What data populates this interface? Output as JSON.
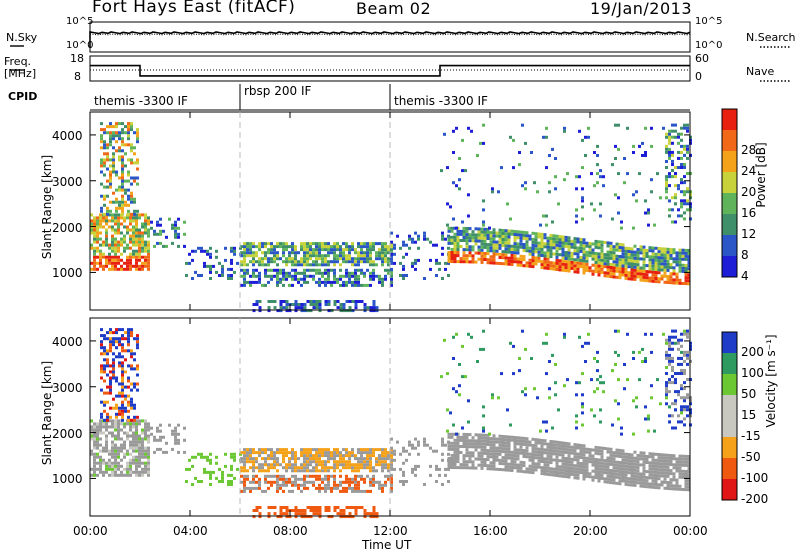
{
  "header": {
    "title": "Fort Hays East (fitACF)",
    "beam": "Beam 02",
    "date": "19/Jan/2013"
  },
  "panel_labels": {
    "nsky": "N.Sky",
    "nsearch": "N.Search",
    "freq": "Freq.",
    "mhz": "[MHz]",
    "nave": "Nave",
    "cpid": "CPID"
  },
  "colors": {
    "power": [
      "#1e1ed6",
      "#2a56c8",
      "#3f8f6a",
      "#5fb35a",
      "#c8d23a",
      "#f3a21a",
      "#f06818",
      "#e82010"
    ],
    "velocity": [
      "#e01515",
      "#f05a10",
      "#f5a21a",
      "#c8c8c0",
      "#c8c8c0",
      "#6cc832",
      "#2f9a60",
      "#1e3cc8"
    ],
    "ground": "#9a9a9a"
  },
  "chart_data": [
    {
      "type": "line",
      "name": "scan-info",
      "nsky_axis": {
        "ticks": [
          "10^5",
          "10^0"
        ]
      },
      "nsearch_axis": {
        "ticks": [
          "10^5",
          "10^0"
        ]
      },
      "freq_axis": {
        "ylim": [
          8,
          18
        ],
        "ticks": [
          "18",
          "8"
        ]
      },
      "nave_axis": {
        "ylim": [
          0,
          60
        ],
        "ticks": [
          "60",
          "0"
        ]
      },
      "freq_x": [
        0,
        2,
        2,
        14,
        14,
        24
      ],
      "freq_y": [
        15,
        15,
        10.3,
        10.3,
        15,
        15
      ],
      "cpid_segments": [
        {
          "label": "themis -3300 IF",
          "start": 0,
          "end": 6
        },
        {
          "label": "rbsp 200 IF",
          "start": 6,
          "end": 12
        },
        {
          "label": "themis -3300 IF",
          "start": 12,
          "end": 24
        }
      ]
    },
    {
      "type": "heatmap",
      "name": "power",
      "ylabel": "Slant Range [km]",
      "ylim": [
        180,
        4500
      ],
      "yticks": [
        1000,
        2000,
        3000,
        4000
      ],
      "colorbar": {
        "label": "Power [dB]",
        "ticks": [
          "4",
          "8",
          "12",
          "16",
          "20",
          "24",
          "28"
        ]
      }
    },
    {
      "type": "heatmap",
      "name": "velocity",
      "ylabel": "Slant Range [km]",
      "ylim": [
        180,
        4500
      ],
      "yticks": [
        1000,
        2000,
        3000,
        4000
      ],
      "colorbar": {
        "label": "Velocity [m s⁻¹]",
        "ticks": [
          "200",
          "100",
          "50",
          "15",
          "-15",
          "-50",
          "-100",
          "-200"
        ]
      }
    }
  ],
  "x_axis": {
    "ticks": [
      "00:00",
      "04:00",
      "08:00",
      "12:00",
      "16:00",
      "20:00",
      "00:00"
    ],
    "xlabel": "Time UT",
    "range_hours": [
      0,
      24
    ]
  }
}
